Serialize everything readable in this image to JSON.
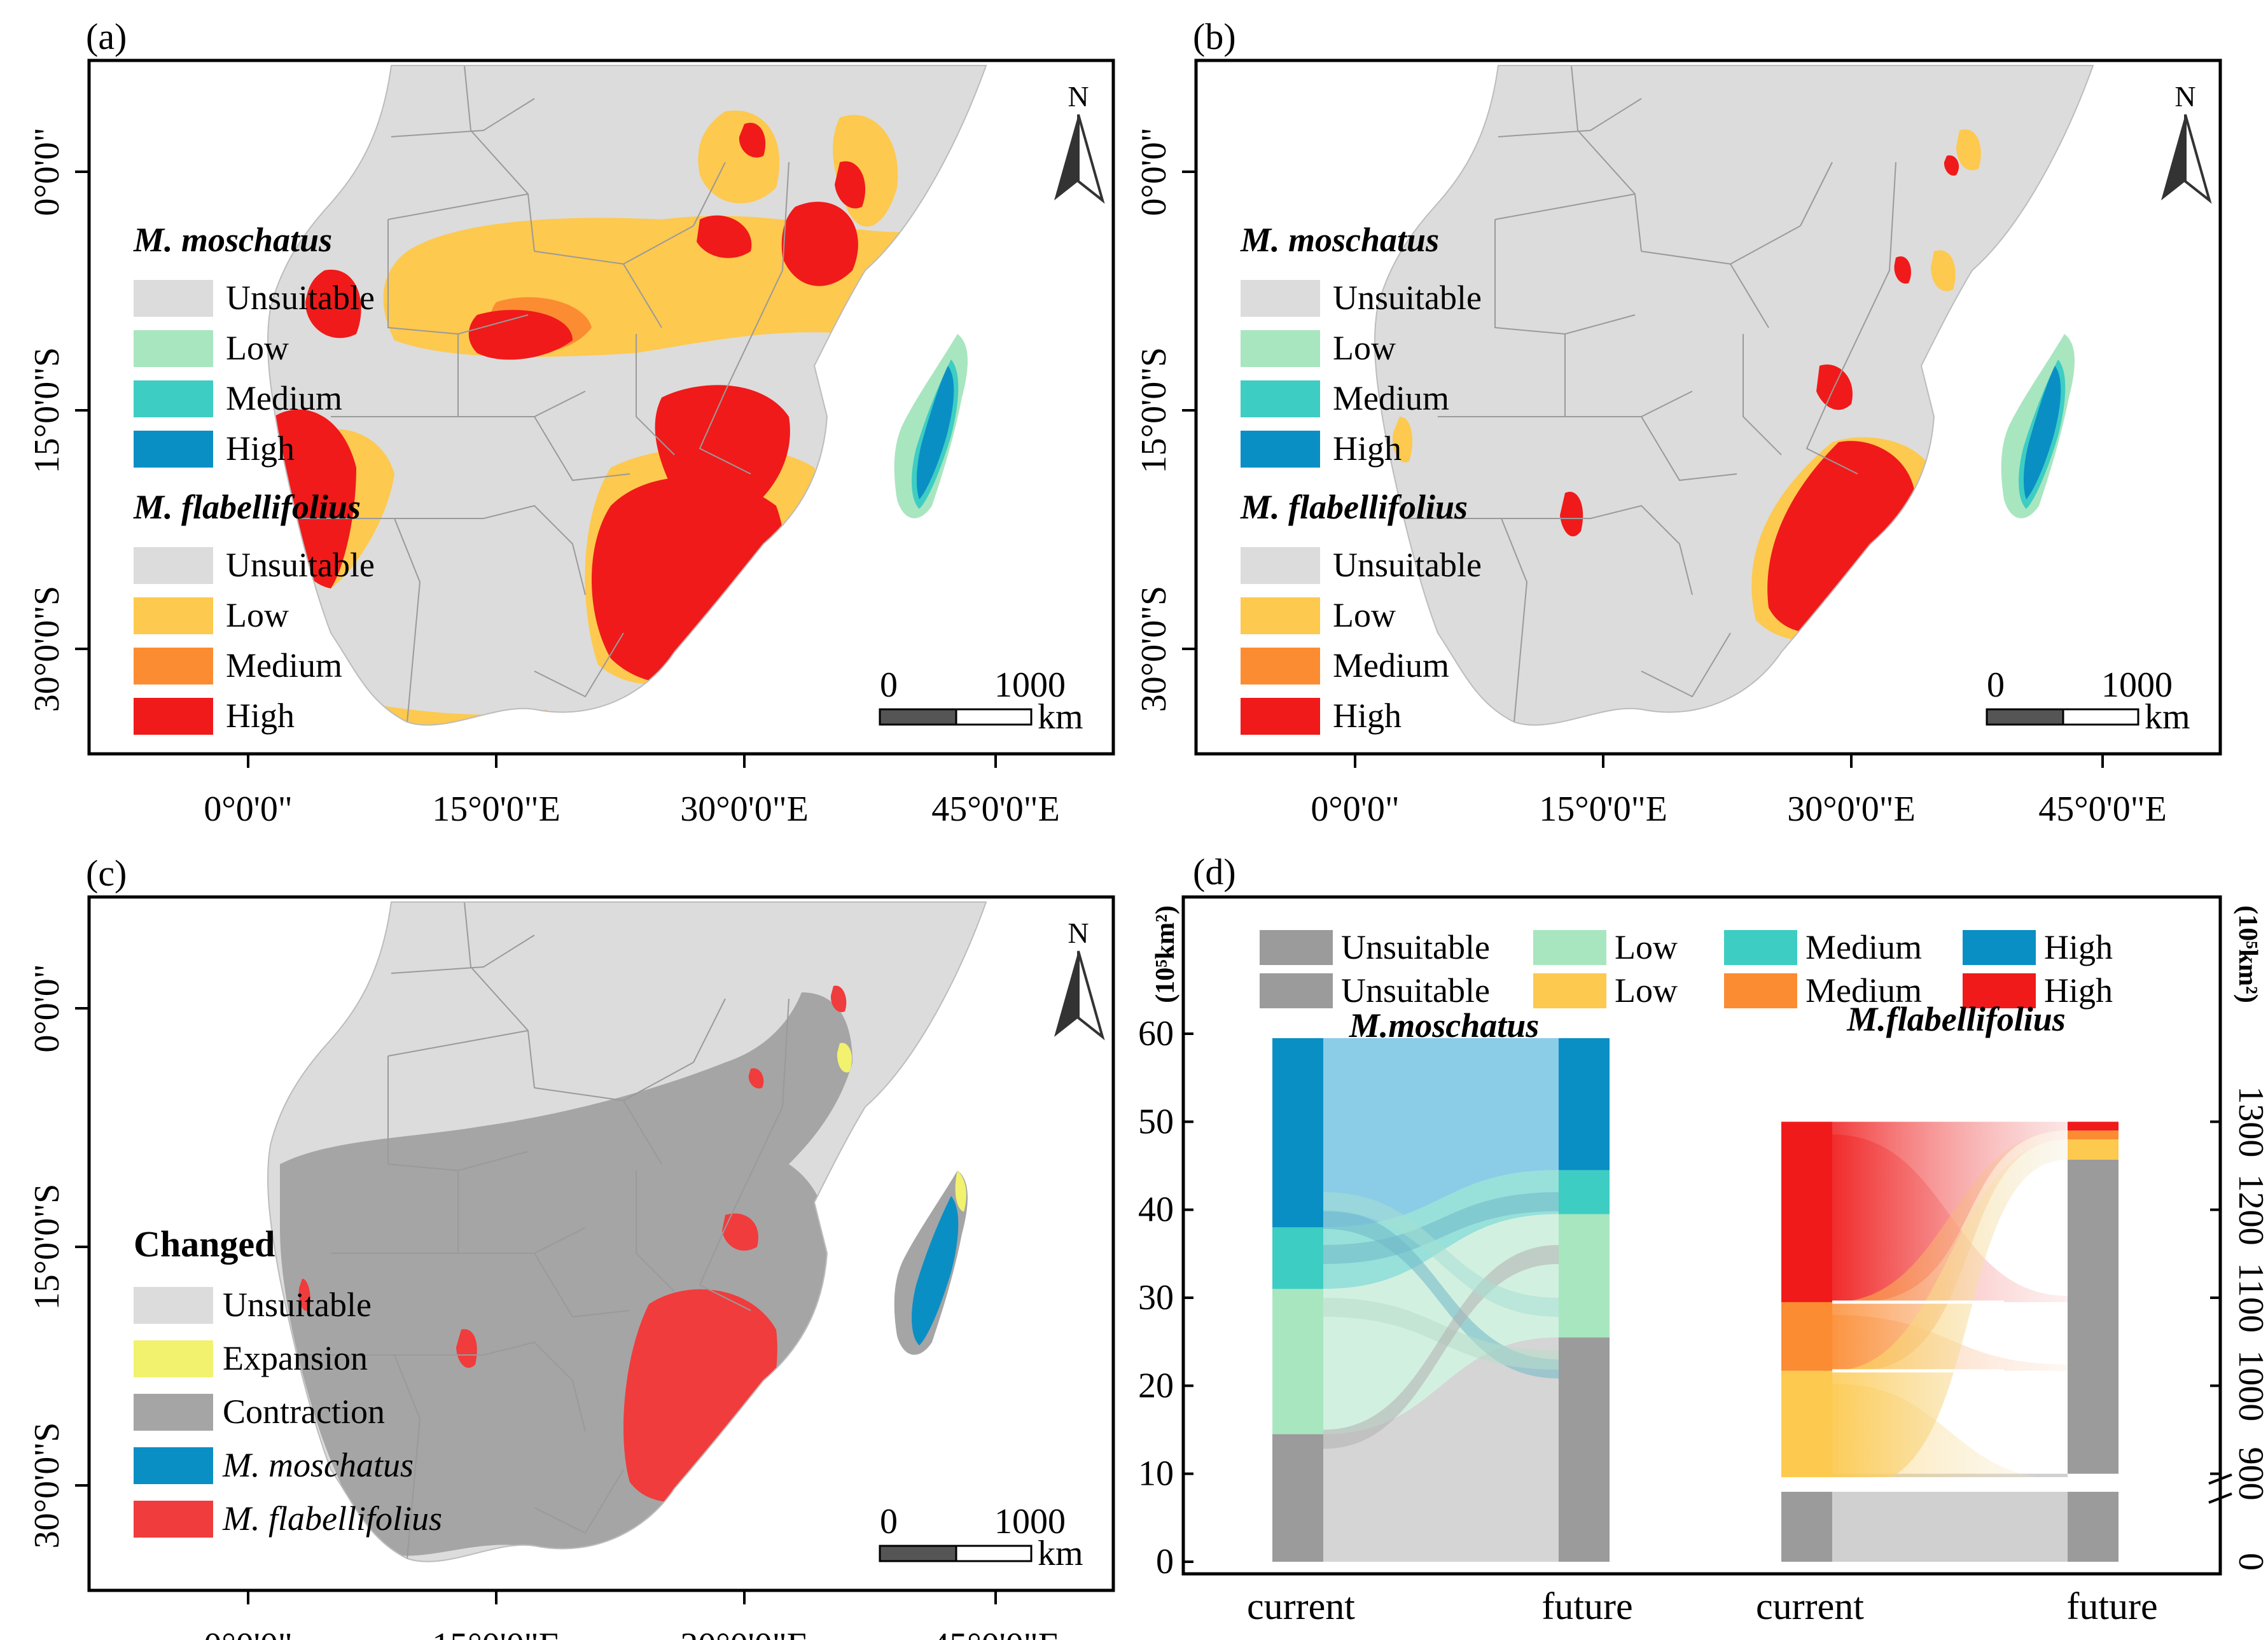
{
  "panels": [
    {
      "label": "(a)",
      "moschatus_title": "M. moschatus",
      "moschatus_items": [
        {
          "label": "Unsuitable",
          "color": "#dcdcdc"
        },
        {
          "label": "Low",
          "color": "#a8e6c0"
        },
        {
          "label": "Medium",
          "color": "#3ecdc2"
        },
        {
          "label": "High",
          "color": "#0a8fc4"
        }
      ],
      "flabellifolius_title": "M. flabellifolius",
      "flabellifolius_items": [
        {
          "label": "Unsuitable",
          "color": "#dcdcdc"
        },
        {
          "label": "Low",
          "color": "#fdc94e"
        },
        {
          "label": "Medium",
          "color": "#fb8c32"
        },
        {
          "label": "High",
          "color": "#f01a1a"
        }
      ]
    },
    {
      "label": "(b)",
      "moschatus_title": "M. moschatus",
      "moschatus_items": [
        {
          "label": "Unsuitable",
          "color": "#dcdcdc"
        },
        {
          "label": "Low",
          "color": "#a8e6c0"
        },
        {
          "label": "Medium",
          "color": "#3ecdc2"
        },
        {
          "label": "High",
          "color": "#0a8fc4"
        }
      ],
      "flabellifolius_title": "M. flabellifolius",
      "flabellifolius_items": [
        {
          "label": "Unsuitable",
          "color": "#dcdcdc"
        },
        {
          "label": "Low",
          "color": "#fdc94e"
        },
        {
          "label": "Medium",
          "color": "#fb8c32"
        },
        {
          "label": "High",
          "color": "#f01a1a"
        }
      ]
    },
    {
      "label": "(c)",
      "changed_title": "Changed",
      "changed_items": [
        {
          "label": "Unsuitable",
          "color": "#dcdcdc",
          "italic": false
        },
        {
          "label": "Expansion",
          "color": "#f2f26e",
          "italic": false
        },
        {
          "label": "Contraction",
          "color": "#a5a5a5",
          "italic": false
        },
        {
          "label": "M. moschatus",
          "color": "#0a8fc4",
          "italic": true
        },
        {
          "label": "M. flabellifolius",
          "color": "#f03c3c",
          "italic": true
        }
      ]
    }
  ],
  "map_axes": {
    "x_ticks": [
      "0°0'0\"",
      "15°0'0\"E",
      "30°0'0\"E",
      "45°0'0\"E"
    ],
    "y_ticks": [
      "0°0'0\"",
      "15°0'0\"S",
      "30°0'0\"S"
    ],
    "north": "N",
    "scale_left": "0",
    "scale_right": "1000",
    "scale_unit": "km"
  },
  "colors": {
    "land": "#dcdcdc",
    "border": "#9a9a9a",
    "contraction": "#a5a5a5"
  },
  "chart_data": {
    "type": "sankey",
    "panel_label": "(d)",
    "legend": [
      {
        "label": "Unsuitable",
        "color": "#9b9b9b"
      },
      {
        "label": "Low",
        "color": "#a8e6c0"
      },
      {
        "label": "Medium",
        "color": "#3ecdc2"
      },
      {
        "label": "High",
        "color": "#0a8fc4"
      },
      {
        "label": "Unsuitable",
        "color": "#9b9b9b"
      },
      {
        "label": "Low",
        "color": "#fdc94e"
      },
      {
        "label": "Medium",
        "color": "#fb8c32"
      },
      {
        "label": "High",
        "color": "#f01a1a"
      }
    ],
    "left_axis": {
      "unit": "(10⁵km²)",
      "ticks": [
        0,
        10,
        20,
        30,
        40,
        50,
        60
      ],
      "range": [
        0,
        60
      ]
    },
    "right_axis": {
      "unit": "(10⁵km²)",
      "ticks": [
        900,
        1000,
        1100,
        1200,
        1300
      ],
      "break_ticks": [
        0
      ],
      "range": [
        800,
        1400
      ]
    },
    "x_labels": [
      "current",
      "future",
      "current",
      "future"
    ],
    "species": [
      {
        "name": "M.moschatus",
        "current": [
          {
            "class": "Unsuitable",
            "from": 0,
            "to": 14.5,
            "color": "#9b9b9b"
          },
          {
            "class": "Low",
            "from": 14.5,
            "to": 31,
            "color": "#a8e6c0"
          },
          {
            "class": "Medium",
            "from": 31,
            "to": 38,
            "color": "#3ecdc2"
          },
          {
            "class": "High",
            "from": 38,
            "to": 59.5,
            "color": "#0a8fc4"
          }
        ],
        "future": [
          {
            "class": "Unsuitable",
            "from": 0,
            "to": 25.5,
            "color": "#9b9b9b"
          },
          {
            "class": "Low",
            "from": 25.5,
            "to": 39.5,
            "color": "#a8e6c0"
          },
          {
            "class": "Medium",
            "from": 39.5,
            "to": 44.5,
            "color": "#3ecdc2"
          },
          {
            "class": "High",
            "from": 44.5,
            "to": 59.5,
            "color": "#0a8fc4"
          }
        ]
      },
      {
        "name": "M.flabellifolius",
        "current": [
          {
            "class": "Unsuitable",
            "from": 0,
            "to": 886,
            "color": "#9b9b9b"
          },
          {
            "class": "Low",
            "from": 886,
            "to": 1017,
            "color": "#fdc94e"
          },
          {
            "class": "Medium",
            "from": 1017,
            "to": 1095,
            "color": "#fb8c32"
          },
          {
            "class": "High",
            "from": 1095,
            "to": 1300,
            "color": "#f01a1a"
          }
        ],
        "future": [
          {
            "class": "Unsuitable",
            "from": 0,
            "to": 1257,
            "color": "#9b9b9b"
          },
          {
            "class": "Low",
            "from": 1257,
            "to": 1280,
            "color": "#fdc94e"
          },
          {
            "class": "Medium",
            "from": 1280,
            "to": 1290,
            "color": "#fb8c32"
          },
          {
            "class": "High",
            "from": 1290,
            "to": 1300,
            "color": "#f01a1a"
          }
        ]
      }
    ]
  }
}
